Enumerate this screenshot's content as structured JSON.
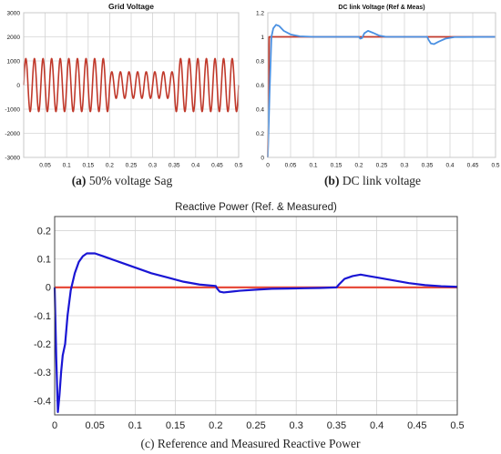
{
  "captions": {
    "a_tag": "(a)",
    "a_text": "50% voltage Sag",
    "b_tag": "(b)",
    "b_text": "DC link voltage",
    "c_text": "(c) Reference and Measured Reactive Power"
  },
  "chart_data": [
    {
      "id": "a",
      "type": "line",
      "title": "Grid Voltage",
      "xlabel": "",
      "ylabel": "",
      "xlim": [
        0,
        0.5
      ],
      "ylim": [
        -3000,
        3000
      ],
      "x_ticks": [
        "0.05",
        "0.1",
        "0.15",
        "0.2",
        "0.25",
        "0.3",
        "0.35",
        "0.4",
        "0.45",
        "0.5"
      ],
      "y_ticks": [
        "3000",
        "2000",
        "1000",
        "0",
        "-1000",
        "-2000",
        "-3000"
      ],
      "grid": true,
      "series": [
        {
          "color": "#c0392b",
          "frequency_hz": 50,
          "segments": [
            {
              "x": [
                0,
                0.2
              ],
              "amplitude": 1100
            },
            {
              "x": [
                0.2,
                0.35
              ],
              "amplitude": 550
            },
            {
              "x": [
                0.35,
                0.5
              ],
              "amplitude": 1100
            }
          ]
        }
      ]
    },
    {
      "id": "b",
      "type": "line",
      "title": "DC link Voltage (Ref & Meas)",
      "xlabel": "",
      "ylabel": "",
      "xlim": [
        0,
        0.5
      ],
      "ylim": [
        0,
        1.2
      ],
      "x_ticks": [
        "0",
        "0.05",
        "0.1",
        "0.15",
        "0.2",
        "0.25",
        "0.3",
        "0.35",
        "0.4",
        "0.45",
        "0.5"
      ],
      "y_ticks": [
        "0",
        "0.2",
        "0.4",
        "0.6",
        "0.8",
        "1",
        "1.2"
      ],
      "grid": true,
      "series": [
        {
          "color": "#c0392b",
          "x": [
            0,
            0.003,
            0.5
          ],
          "y": [
            0,
            1,
            1
          ]
        },
        {
          "color": "#4a90e2",
          "x": [
            0,
            0.004,
            0.008,
            0.012,
            0.018,
            0.025,
            0.035,
            0.05,
            0.07,
            0.1,
            0.2,
            0.203,
            0.207,
            0.212,
            0.22,
            0.23,
            0.245,
            0.26,
            0.35,
            0.353,
            0.358,
            0.365,
            0.375,
            0.39,
            0.41,
            0.5
          ],
          "y": [
            0,
            0.55,
            1.0,
            1.07,
            1.1,
            1.09,
            1.05,
            1.02,
            1.005,
            1.0,
            1.0,
            0.985,
            0.99,
            1.03,
            1.05,
            1.035,
            1.01,
            1.0,
            1.0,
            0.975,
            0.945,
            0.94,
            0.96,
            0.985,
            0.998,
            1.0
          ]
        }
      ]
    },
    {
      "id": "c",
      "type": "line",
      "title": "Reactive Power (Ref. & Measured)",
      "xlabel": "",
      "ylabel": "",
      "xlim": [
        0,
        0.5
      ],
      "ylim": [
        -0.45,
        0.25
      ],
      "x_ticks": [
        "0",
        "0.05",
        "0.1",
        "0.15",
        "0.2",
        "0.25",
        "0.3",
        "0.35",
        "0.4",
        "0.45",
        "0.5"
      ],
      "y_ticks": [
        "0.2",
        "0.1",
        "0",
        "-0.1",
        "-0.2",
        "-0.3",
        "-0.4"
      ],
      "grid": true,
      "series": [
        {
          "color": "#e74c3c",
          "x": [
            0,
            0.5
          ],
          "y": [
            0,
            0
          ]
        },
        {
          "color": "#1a16d4",
          "x": [
            0,
            0.002,
            0.004,
            0.006,
            0.008,
            0.01,
            0.013,
            0.016,
            0.02,
            0.025,
            0.03,
            0.035,
            0.04,
            0.045,
            0.05,
            0.06,
            0.07,
            0.08,
            0.1,
            0.12,
            0.14,
            0.16,
            0.18,
            0.2,
            0.2,
            0.202,
            0.205,
            0.21,
            0.22,
            0.23,
            0.25,
            0.27,
            0.29,
            0.31,
            0.33,
            0.35,
            0.35,
            0.353,
            0.36,
            0.37,
            0.38,
            0.39,
            0.4,
            0.42,
            0.44,
            0.46,
            0.48,
            0.5
          ],
          "y": [
            0,
            -0.25,
            -0.44,
            -0.38,
            -0.3,
            -0.24,
            -0.2,
            -0.1,
            -0.01,
            0.05,
            0.09,
            0.11,
            0.12,
            0.12,
            0.12,
            0.11,
            0.1,
            0.09,
            0.07,
            0.05,
            0.035,
            0.02,
            0.01,
            0.005,
            0.005,
            -0.005,
            -0.015,
            -0.018,
            -0.015,
            -0.012,
            -0.008,
            -0.005,
            -0.004,
            -0.003,
            -0.002,
            0.0,
            0.0,
            0.01,
            0.03,
            0.04,
            0.045,
            0.04,
            0.035,
            0.025,
            0.015,
            0.008,
            0.004,
            0.002
          ]
        }
      ]
    }
  ]
}
